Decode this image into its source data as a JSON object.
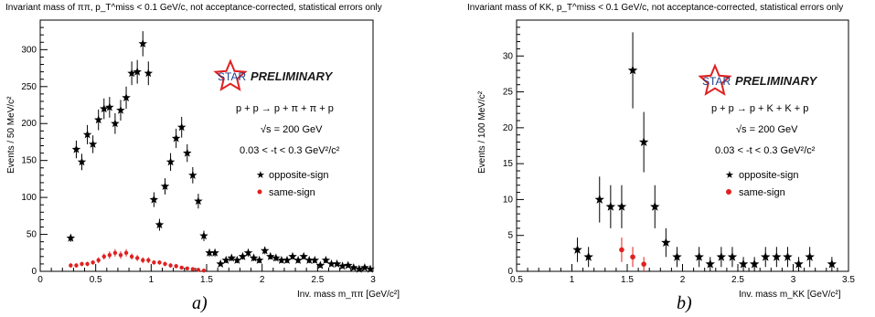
{
  "colors": {
    "opposite": "#000000",
    "same": "#e02020",
    "star_logo": "#e02020"
  },
  "panels": {
    "a": {
      "title": "Invariant mass of ππ,  p_T^miss < 0.1 GeV/c,  not acceptance-corrected,  statistical errors only",
      "prelim": "PRELIMINARY",
      "star": "STAR",
      "reaction": "p + p → p + π + π + p",
      "energy": "√s = 200 GeV",
      "t_range": "0.03 < -t < 0.3 GeV²/c²",
      "leg_opp": "opposite-sign",
      "leg_same": "same-sign",
      "xlabel": "Inv. mass  m_ππ [GeV/c²]",
      "ylabel": "Events / 50 MeV/c²",
      "panel_label": "a)"
    },
    "b": {
      "title": "Invariant mass of KK,  p_T^miss < 0.1 GeV/c,  not acceptance-corrected,  statistical errors only",
      "prelim": "PRELIMINARY",
      "star": "STAR",
      "reaction": "p + p → p + K + K + p",
      "energy": "√s = 200 GeV",
      "t_range": "0.03 < -t < 0.3 GeV²/c²",
      "leg_opp": "opposite-sign",
      "leg_same": "same-sign",
      "xlabel": "Inv. mass  m_KK [GeV/c²]",
      "ylabel": "Events / 100 MeV/c²",
      "panel_label": "b)"
    }
  },
  "chart_data": [
    {
      "type": "scatter",
      "title": "Invariant mass of ππ,  p_T^miss < 0.1 GeV/c,  not acceptance-corrected,  statistical errors only",
      "xlabel": "Inv. mass  m_ππ [GeV/c²]",
      "ylabel": "Events / 50 MeV/c²",
      "xlim": [
        0,
        3
      ],
      "ylim": [
        0,
        340
      ],
      "xticks": [
        0,
        0.5,
        1,
        1.5,
        2,
        2.5,
        3
      ],
      "yticks": [
        0,
        50,
        100,
        150,
        200,
        250,
        300
      ],
      "legend": "right",
      "series": [
        {
          "name": "opposite-sign",
          "x": [
            0.275,
            0.325,
            0.375,
            0.425,
            0.475,
            0.525,
            0.575,
            0.625,
            0.675,
            0.725,
            0.775,
            0.825,
            0.875,
            0.925,
            0.975,
            1.025,
            1.075,
            1.125,
            1.175,
            1.225,
            1.275,
            1.325,
            1.375,
            1.425,
            1.475,
            1.525,
            1.575,
            1.625,
            1.675,
            1.725,
            1.775,
            1.825,
            1.875,
            1.925,
            1.975,
            2.025,
            2.075,
            2.125,
            2.175,
            2.225,
            2.275,
            2.325,
            2.375,
            2.425,
            2.475,
            2.525,
            2.575,
            2.625,
            2.675,
            2.725,
            2.775,
            2.825,
            2.875,
            2.925,
            2.975
          ],
          "y": [
            45,
            165,
            148,
            185,
            172,
            205,
            220,
            222,
            200,
            218,
            235,
            268,
            270,
            308,
            268,
            97,
            63,
            115,
            148,
            180,
            195,
            160,
            130,
            95,
            48,
            25,
            25,
            10,
            15,
            18,
            15,
            20,
            25,
            18,
            15,
            28,
            20,
            18,
            15,
            15,
            20,
            15,
            20,
            15,
            15,
            8,
            15,
            10,
            10,
            7,
            8,
            5,
            3,
            5,
            3
          ],
          "err": [
            5,
            12,
            11,
            13,
            12,
            14,
            14,
            14,
            14,
            14,
            15,
            16,
            16,
            17,
            16,
            10,
            8,
            11,
            12,
            13,
            14,
            12,
            11,
            10,
            7,
            5,
            5,
            3,
            4,
            4,
            4,
            4,
            5,
            4,
            4,
            5,
            4,
            4,
            4,
            4,
            4,
            4,
            4,
            4,
            4,
            3,
            4,
            3,
            3,
            3,
            3,
            2,
            2,
            2,
            2
          ]
        },
        {
          "name": "same-sign",
          "x": [
            0.275,
            0.325,
            0.375,
            0.425,
            0.475,
            0.525,
            0.575,
            0.625,
            0.675,
            0.725,
            0.775,
            0.825,
            0.875,
            0.925,
            0.975,
            1.025,
            1.075,
            1.125,
            1.175,
            1.225,
            1.275,
            1.325,
            1.375,
            1.425,
            1.475
          ],
          "y": [
            8,
            8,
            10,
            10,
            12,
            15,
            20,
            22,
            25,
            22,
            25,
            20,
            18,
            15,
            15,
            12,
            12,
            10,
            8,
            7,
            5,
            4,
            3,
            2,
            1
          ],
          "err": [
            3,
            3,
            3,
            3,
            3,
            4,
            4,
            5,
            5,
            5,
            5,
            4,
            4,
            4,
            4,
            3,
            3,
            3,
            3,
            3,
            2,
            2,
            2,
            1,
            1
          ]
        }
      ]
    },
    {
      "type": "scatter",
      "title": "Invariant mass of KK,  p_T^miss < 0.1 GeV/c,  not acceptance-corrected,  statistical errors only",
      "xlabel": "Inv. mass  m_KK [GeV/c²]",
      "ylabel": "Events / 100 MeV/c²",
      "xlim": [
        0.5,
        3.5
      ],
      "ylim": [
        0,
        35
      ],
      "xticks": [
        0.5,
        1,
        1.5,
        2,
        2.5,
        3,
        3.5
      ],
      "yticks": [
        0,
        5,
        10,
        15,
        20,
        25,
        30
      ],
      "legend": "right",
      "series": [
        {
          "name": "opposite-sign",
          "x": [
            1.05,
            1.15,
            1.25,
            1.35,
            1.45,
            1.55,
            1.65,
            1.75,
            1.85,
            1.95,
            2.15,
            2.25,
            2.35,
            2.45,
            2.55,
            2.65,
            2.75,
            2.85,
            2.95,
            3.05,
            3.15,
            3.35
          ],
          "y": [
            3,
            2,
            10,
            9,
            9,
            28,
            18,
            9,
            4,
            2,
            2,
            1,
            2,
            2,
            1,
            1,
            2,
            2,
            2,
            1,
            2,
            1
          ],
          "err": [
            1.7,
            1.4,
            3.2,
            3,
            3,
            5.3,
            4.2,
            3,
            2,
            1.4,
            1.4,
            1,
            1.4,
            1.4,
            1,
            1,
            1.4,
            1.4,
            1.4,
            1,
            1.4,
            1
          ]
        },
        {
          "name": "same-sign",
          "x": [
            1.45,
            1.55,
            1.65
          ],
          "y": [
            3,
            2,
            1
          ],
          "err": [
            1.7,
            1.4,
            1
          ]
        }
      ]
    }
  ]
}
